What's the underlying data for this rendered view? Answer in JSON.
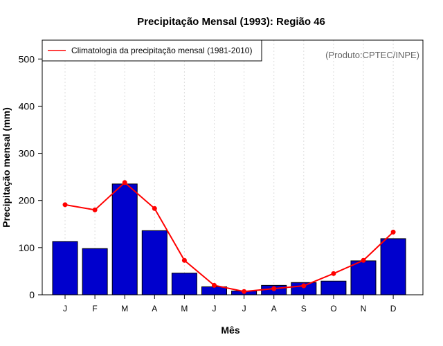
{
  "chart_data": {
    "type": "bar",
    "title": "Precipitação Mensal (1993): Região 46",
    "xlabel": "Mês",
    "ylabel": "Precipitação mensal (mm)",
    "ylim": [
      0,
      540
    ],
    "yticks": [
      0,
      100,
      200,
      300,
      400,
      500
    ],
    "categories": [
      "J",
      "F",
      "M",
      "A",
      "M",
      "J",
      "J",
      "A",
      "S",
      "O",
      "N",
      "D"
    ],
    "series": [
      {
        "name": "Precipitação mensal (1993)",
        "kind": "bar",
        "color": "#0000cd",
        "values": [
          113,
          98,
          235,
          136,
          46,
          17,
          8,
          20,
          26,
          29,
          72,
          119
        ]
      },
      {
        "name": "Climatologia da precipitação mensal (1981-2010)",
        "kind": "line",
        "color": "#ff0000",
        "values": [
          191,
          180,
          238,
          183,
          73,
          20,
          7,
          13,
          19,
          45,
          73,
          133
        ]
      }
    ],
    "legend": {
      "position": "top-left",
      "entries": [
        "Climatologia da precipitação mensal (1981-2010)"
      ]
    },
    "credit": "(Produto:CPTEC/INPE)",
    "grid": {
      "vertical": true,
      "horizontal": false,
      "color": "#dddddd"
    }
  }
}
